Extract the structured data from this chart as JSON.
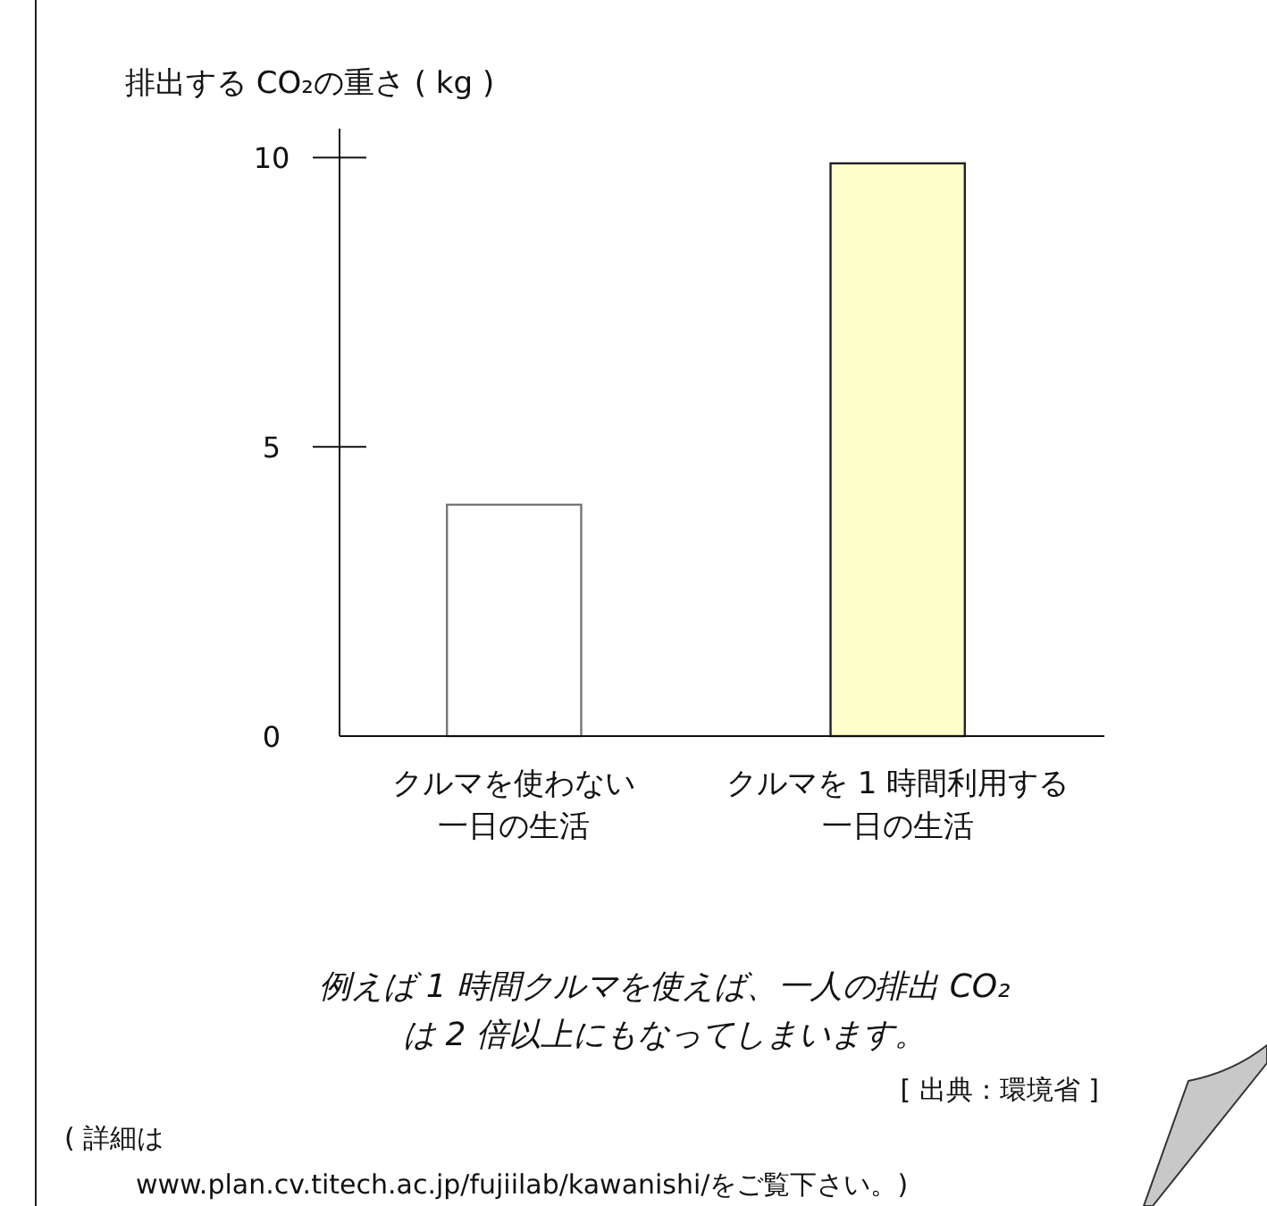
{
  "chart_data": {
    "type": "bar",
    "ylabel": "排出する CO₂の重さ ( kg )",
    "categories": [
      "クルマを使わない一日の生活",
      "クルマを 1 時間利用する一日の生活"
    ],
    "values": [
      4,
      9.9
    ],
    "colors": [
      "#ffffff",
      "#ffffcc"
    ],
    "ylim": [
      0,
      10.5
    ],
    "yticks": [
      0,
      5,
      10
    ],
    "grid": false,
    "annotations": [
      "例えば 1 時間クルマを使えば、一人の排出 CO₂\nは 2 倍以上にもなってしまいます。",
      "[ 出典：環境省 ]",
      "( 詳細は\nwww.plan.cv.titech.ac.jp/fujiilab/kawanishi/をご覧下さい。)"
    ]
  }
}
